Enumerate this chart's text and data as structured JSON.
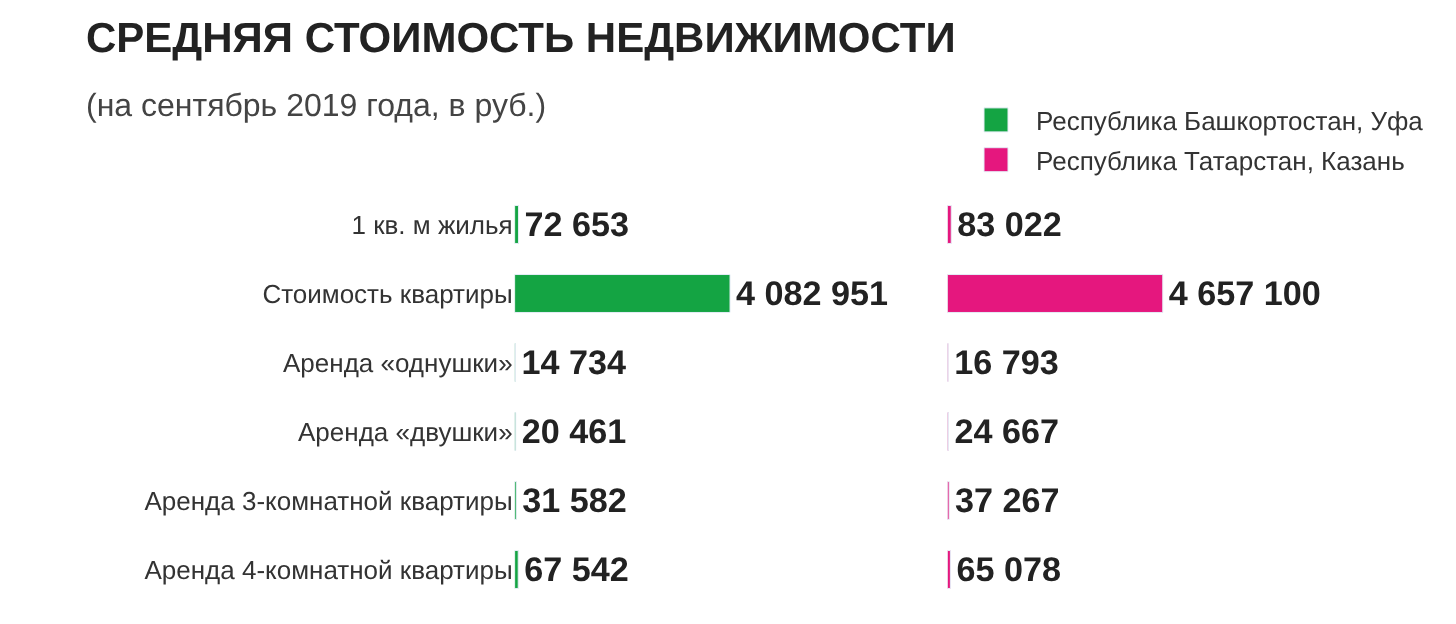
{
  "chart_data": [
    {
      "type": "bar",
      "orientation": "horizontal",
      "title": "СРЕДНЯЯ СТОИМОСТЬ НЕДВИЖИМОСТИ",
      "subtitle": "(на сентябрь 2019 года, в руб.)",
      "categories": [
        "1 кв. м жилья",
        "Стоимость квартиры",
        "Аренда «однушки»",
        "Аренда «двушки»",
        "Аренда 3-комнатной квартиры",
        "Аренда 4-комнатной квартиры"
      ],
      "series": [
        {
          "name": "Республика Башкортостан, Уфа",
          "color": "#14a443",
          "values": [
            72653,
            4082951,
            14734,
            20461,
            31582,
            67542
          ],
          "value_labels": [
            "72 653",
            "4 082 951",
            "14 734",
            "20 461",
            "31 582",
            "67 542"
          ]
        }
      ],
      "tick_labels": "y",
      "legend": "top right"
    },
    {
      "type": "bar",
      "orientation": "horizontal",
      "categories": [
        "1 кв. м жилья",
        "Стоимость квартиры",
        "Аренда «однушки»",
        "Аренда «двушки»",
        "Аренда 3-комнатной квартиры",
        "Аренда 4-комнатной квартиры"
      ],
      "series": [
        {
          "name": "Республика Татарстан, Казань",
          "color": "#e5177e",
          "values": [
            83022,
            4657100,
            16793,
            24667,
            37267,
            65078
          ],
          "value_labels": [
            "83 022",
            "4 657 100",
            "16 793",
            "24 667",
            "37 267",
            "65 078"
          ]
        }
      ],
      "tick_labels": false,
      "legend": "top right"
    }
  ]
}
